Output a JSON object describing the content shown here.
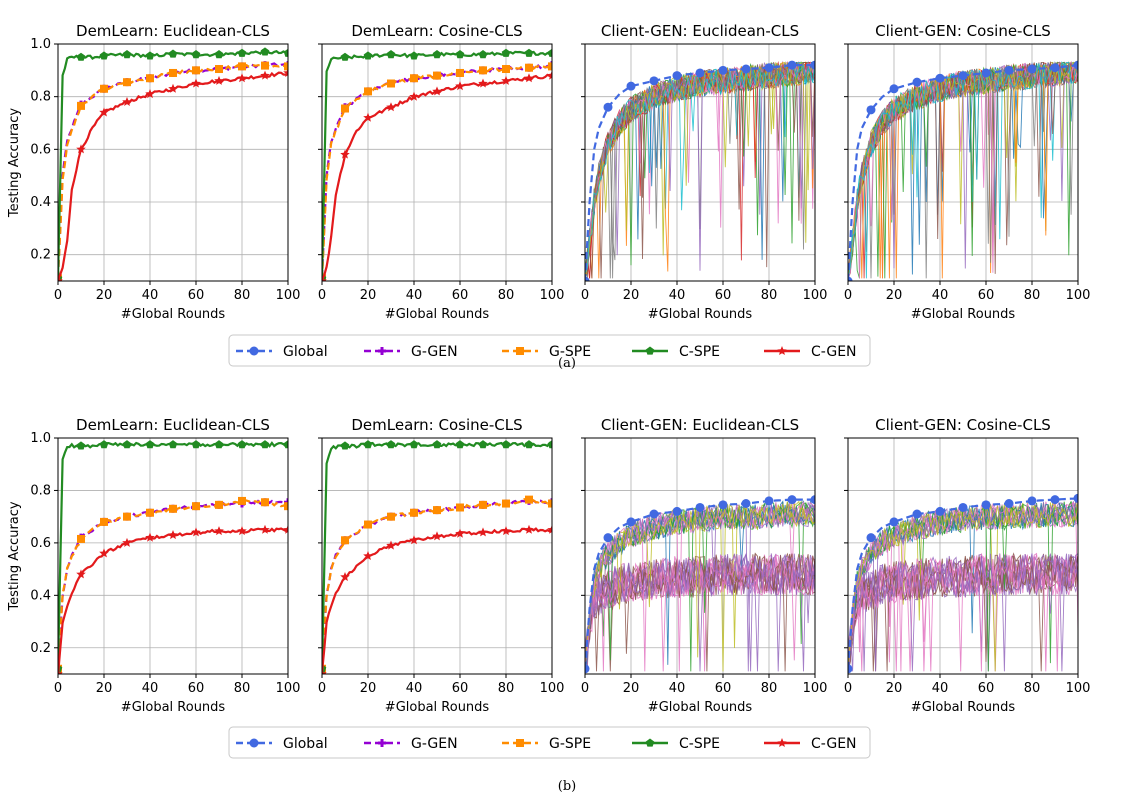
{
  "colors": {
    "Global": "#4169e1",
    "G-GEN": "#9400d3",
    "G-SPE": "#ff8c00",
    "C-SPE": "#228b22",
    "C-GEN": "#e31a1c",
    "client_palette": [
      "#1f77b4",
      "#ff7f0e",
      "#2ca02c",
      "#d62728",
      "#9467bd",
      "#8c564b",
      "#e377c2",
      "#7f7f7f",
      "#bcbd22",
      "#17becf"
    ]
  },
  "legend": {
    "items": [
      {
        "label": "Global",
        "marker": "circle",
        "dash": true
      },
      {
        "label": "G-GEN",
        "marker": "plus",
        "dash": true
      },
      {
        "label": "G-SPE",
        "marker": "square",
        "dash": true
      },
      {
        "label": "C-SPE",
        "marker": "pentagon",
        "dash": false
      },
      {
        "label": "C-GEN",
        "marker": "star",
        "dash": false
      }
    ]
  },
  "captions": {
    "a": "(a)",
    "b": "(b)"
  },
  "chart_data": [
    {
      "panel": "a-1",
      "type": "line",
      "title": "DemLearn: Euclidean-CLS",
      "xlabel": "#Global Rounds",
      "ylabel": "Testing Accuracy",
      "xlim": [
        0,
        100
      ],
      "ylim": [
        0.1,
        1.0
      ],
      "xticks": [
        0,
        20,
        40,
        60,
        80,
        100
      ],
      "yticks": [
        0.2,
        0.4,
        0.6,
        0.8,
        1.0
      ],
      "grid": true,
      "x": [
        0,
        2,
        4,
        6,
        10,
        15,
        20,
        30,
        40,
        50,
        60,
        70,
        80,
        90,
        100
      ],
      "series": [
        {
          "name": "Global",
          "values": [
            null,
            null,
            null,
            null,
            null,
            null,
            null,
            null,
            null,
            null,
            null,
            null,
            null,
            null,
            null
          ]
        },
        {
          "name": "G-GEN",
          "values": [
            0.11,
            0.5,
            0.63,
            0.68,
            0.77,
            0.8,
            0.83,
            0.855,
            0.87,
            0.89,
            0.9,
            0.905,
            0.915,
            0.92,
            0.92
          ]
        },
        {
          "name": "G-SPE",
          "values": [
            0.11,
            0.48,
            0.62,
            0.67,
            0.765,
            0.8,
            0.83,
            0.855,
            0.87,
            0.89,
            0.9,
            0.905,
            0.915,
            0.918,
            0.915
          ]
        },
        {
          "name": "C-SPE",
          "values": [
            0.11,
            0.88,
            0.94,
            0.95,
            0.95,
            0.95,
            0.955,
            0.96,
            0.955,
            0.962,
            0.96,
            0.96,
            0.965,
            0.97,
            0.965
          ]
        },
        {
          "name": "C-GEN",
          "values": [
            0.1,
            0.15,
            0.25,
            0.45,
            0.6,
            0.68,
            0.74,
            0.78,
            0.81,
            0.83,
            0.85,
            0.86,
            0.87,
            0.88,
            0.89
          ]
        }
      ]
    },
    {
      "panel": "a-2",
      "type": "line",
      "title": "DemLearn: Cosine-CLS",
      "xlabel": "#Global Rounds",
      "ylabel": "",
      "xlim": [
        0,
        100
      ],
      "ylim": [
        0.1,
        1.0
      ],
      "xticks": [
        0,
        20,
        40,
        60,
        80,
        100
      ],
      "yticks": [
        0.2,
        0.4,
        0.6,
        0.8,
        1.0
      ],
      "grid": true,
      "x": [
        0,
        2,
        4,
        6,
        10,
        15,
        20,
        30,
        40,
        50,
        60,
        70,
        80,
        90,
        100
      ],
      "series": [
        {
          "name": "G-GEN",
          "values": [
            0.11,
            0.5,
            0.63,
            0.68,
            0.76,
            0.79,
            0.82,
            0.85,
            0.87,
            0.88,
            0.89,
            0.9,
            0.905,
            0.91,
            0.92
          ]
        },
        {
          "name": "G-SPE",
          "values": [
            0.11,
            0.48,
            0.62,
            0.67,
            0.755,
            0.79,
            0.82,
            0.85,
            0.87,
            0.88,
            0.89,
            0.9,
            0.905,
            0.91,
            0.915
          ]
        },
        {
          "name": "C-SPE",
          "values": [
            0.11,
            0.9,
            0.94,
            0.945,
            0.95,
            0.95,
            0.955,
            0.96,
            0.955,
            0.96,
            0.96,
            0.96,
            0.965,
            0.965,
            0.965
          ]
        },
        {
          "name": "C-GEN",
          "values": [
            0.1,
            0.15,
            0.27,
            0.43,
            0.58,
            0.67,
            0.72,
            0.76,
            0.8,
            0.82,
            0.84,
            0.85,
            0.86,
            0.87,
            0.88
          ]
        }
      ]
    },
    {
      "panel": "a-3",
      "type": "line",
      "title": "Client-GEN: Euclidean-CLS",
      "xlabel": "#Global Rounds",
      "ylabel": "",
      "xlim": [
        0,
        100
      ],
      "ylim": [
        0.1,
        1.0
      ],
      "xticks": [
        0,
        20,
        40,
        60,
        80,
        100
      ],
      "yticks": [
        0.2,
        0.4,
        0.6,
        0.8,
        1.0
      ],
      "grid": true,
      "x": [
        0,
        2,
        4,
        6,
        10,
        15,
        20,
        30,
        40,
        50,
        60,
        70,
        80,
        90,
        100
      ],
      "series": [
        {
          "name": "Global",
          "values": [
            0.1,
            0.4,
            0.6,
            0.68,
            0.76,
            0.81,
            0.84,
            0.86,
            0.88,
            0.89,
            0.9,
            0.905,
            0.91,
            0.92,
            0.92
          ]
        },
        {
          "name": "",
          "values": [
            0.1,
            0.25,
            0.4,
            0.5,
            0.62,
            0.7,
            0.75,
            0.8,
            0.83,
            0.85,
            0.86,
            0.87,
            0.88,
            0.89,
            0.9
          ]
        }
      ]
    },
    {
      "panel": "a-4",
      "type": "line",
      "title": "Client-GEN: Cosine-CLS",
      "xlabel": "#Global Rounds",
      "ylabel": "",
      "xlim": [
        0,
        100
      ],
      "ylim": [
        0.1,
        1.0
      ],
      "xticks": [
        0,
        20,
        40,
        60,
        80,
        100
      ],
      "yticks": [
        0.2,
        0.4,
        0.6,
        0.8,
        1.0
      ],
      "grid": true,
      "x": [
        0,
        2,
        4,
        6,
        10,
        15,
        20,
        30,
        40,
        50,
        60,
        70,
        80,
        90,
        100
      ],
      "series": [
        {
          "name": "Global",
          "values": [
            0.1,
            0.4,
            0.6,
            0.68,
            0.75,
            0.8,
            0.83,
            0.855,
            0.87,
            0.88,
            0.89,
            0.9,
            0.905,
            0.91,
            0.92
          ]
        },
        {
          "name": "",
          "values": [
            0.1,
            0.25,
            0.4,
            0.5,
            0.62,
            0.7,
            0.75,
            0.8,
            0.83,
            0.85,
            0.86,
            0.87,
            0.88,
            0.89,
            0.9
          ]
        }
      ]
    },
    {
      "panel": "b-1",
      "type": "line",
      "title": "DemLearn: Euclidean-CLS",
      "xlabel": "#Global Rounds",
      "ylabel": "Testing Accuracy",
      "xlim": [
        0,
        100
      ],
      "ylim": [
        0.1,
        1.0
      ],
      "xticks": [
        0,
        20,
        40,
        60,
        80,
        100
      ],
      "yticks": [
        0.2,
        0.4,
        0.6,
        0.8,
        1.0
      ],
      "grid": true,
      "x": [
        0,
        2,
        4,
        6,
        10,
        15,
        20,
        30,
        40,
        50,
        60,
        70,
        80,
        90,
        100
      ],
      "series": [
        {
          "name": "G-GEN",
          "values": [
            0.12,
            0.4,
            0.5,
            0.55,
            0.62,
            0.65,
            0.68,
            0.7,
            0.715,
            0.73,
            0.74,
            0.745,
            0.75,
            0.755,
            0.755
          ]
        },
        {
          "name": "G-SPE",
          "values": [
            0.12,
            0.4,
            0.5,
            0.55,
            0.615,
            0.65,
            0.68,
            0.7,
            0.715,
            0.73,
            0.74,
            0.745,
            0.76,
            0.755,
            0.74
          ]
        },
        {
          "name": "C-SPE",
          "values": [
            0.12,
            0.92,
            0.965,
            0.97,
            0.97,
            0.97,
            0.975,
            0.975,
            0.975,
            0.975,
            0.975,
            0.975,
            0.975,
            0.975,
            0.975
          ]
        },
        {
          "name": "C-GEN",
          "values": [
            0.1,
            0.3,
            0.36,
            0.41,
            0.48,
            0.52,
            0.56,
            0.6,
            0.62,
            0.63,
            0.64,
            0.645,
            0.645,
            0.65,
            0.65
          ]
        }
      ]
    },
    {
      "panel": "b-2",
      "type": "line",
      "title": "DemLearn: Cosine-CLS",
      "xlabel": "#Global Rounds",
      "ylabel": "",
      "xlim": [
        0,
        100
      ],
      "ylim": [
        0.1,
        1.0
      ],
      "xticks": [
        0,
        20,
        40,
        60,
        80,
        100
      ],
      "yticks": [
        0.2,
        0.4,
        0.6,
        0.8,
        1.0
      ],
      "grid": true,
      "x": [
        0,
        2,
        4,
        6,
        10,
        15,
        20,
        30,
        40,
        50,
        60,
        70,
        80,
        90,
        100
      ],
      "series": [
        {
          "name": "G-GEN",
          "values": [
            0.12,
            0.4,
            0.5,
            0.55,
            0.61,
            0.64,
            0.67,
            0.7,
            0.715,
            0.725,
            0.735,
            0.745,
            0.75,
            0.76,
            0.755
          ]
        },
        {
          "name": "G-SPE",
          "values": [
            0.12,
            0.4,
            0.5,
            0.55,
            0.61,
            0.64,
            0.67,
            0.7,
            0.715,
            0.725,
            0.735,
            0.745,
            0.75,
            0.765,
            0.75
          ]
        },
        {
          "name": "C-SPE",
          "values": [
            0.12,
            0.9,
            0.96,
            0.965,
            0.97,
            0.97,
            0.975,
            0.975,
            0.975,
            0.975,
            0.975,
            0.975,
            0.975,
            0.975,
            0.975
          ]
        },
        {
          "name": "C-GEN",
          "values": [
            0.1,
            0.3,
            0.36,
            0.41,
            0.47,
            0.51,
            0.55,
            0.59,
            0.61,
            0.625,
            0.635,
            0.64,
            0.645,
            0.65,
            0.65
          ]
        }
      ]
    },
    {
      "panel": "b-3",
      "type": "line",
      "title": "Client-GEN: Euclidean-CLS",
      "xlabel": "#Global Rounds",
      "ylabel": "",
      "xlim": [
        0,
        100
      ],
      "ylim": [
        0.1,
        1.0
      ],
      "xticks": [
        0,
        20,
        40,
        60,
        80,
        100
      ],
      "yticks": [
        0.2,
        0.4,
        0.6,
        0.8,
        1.0
      ],
      "grid": true,
      "x": [
        0,
        2,
        4,
        6,
        10,
        15,
        20,
        30,
        40,
        50,
        60,
        70,
        80,
        90,
        100
      ],
      "series": [
        {
          "name": "Global",
          "values": [
            0.12,
            0.35,
            0.5,
            0.56,
            0.62,
            0.66,
            0.68,
            0.71,
            0.72,
            0.735,
            0.745,
            0.75,
            0.76,
            0.765,
            0.765
          ]
        },
        {
          "name": "",
          "values": [
            0.12,
            0.3,
            0.45,
            0.5,
            0.56,
            0.6,
            0.63,
            0.66,
            0.68,
            0.69,
            0.7,
            0.7,
            0.705,
            0.71,
            0.71
          ]
        },
        {
          "name": "",
          "values": [
            0.12,
            0.3,
            0.38,
            0.4,
            0.42,
            0.44,
            0.45,
            0.46,
            0.47,
            0.47,
            0.48,
            0.48,
            0.48,
            0.48,
            0.48
          ]
        }
      ]
    },
    {
      "panel": "b-4",
      "type": "line",
      "title": "Client-GEN: Cosine-CLS",
      "xlabel": "#Global Rounds",
      "ylabel": "",
      "xlim": [
        0,
        100
      ],
      "ylim": [
        0.1,
        1.0
      ],
      "xticks": [
        0,
        20,
        40,
        60,
        80,
        100
      ],
      "yticks": [
        0.2,
        0.4,
        0.6,
        0.8,
        1.0
      ],
      "grid": true,
      "x": [
        0,
        2,
        4,
        6,
        10,
        15,
        20,
        30,
        40,
        50,
        60,
        70,
        80,
        90,
        100
      ],
      "series": [
        {
          "name": "Global",
          "values": [
            0.12,
            0.35,
            0.5,
            0.56,
            0.62,
            0.66,
            0.68,
            0.71,
            0.72,
            0.735,
            0.745,
            0.75,
            0.76,
            0.765,
            0.77
          ]
        },
        {
          "name": "",
          "values": [
            0.12,
            0.3,
            0.45,
            0.5,
            0.56,
            0.6,
            0.63,
            0.66,
            0.68,
            0.69,
            0.7,
            0.7,
            0.705,
            0.71,
            0.71
          ]
        },
        {
          "name": "",
          "values": [
            0.12,
            0.3,
            0.38,
            0.4,
            0.42,
            0.44,
            0.45,
            0.46,
            0.47,
            0.47,
            0.48,
            0.48,
            0.48,
            0.48,
            0.48
          ]
        }
      ]
    }
  ]
}
